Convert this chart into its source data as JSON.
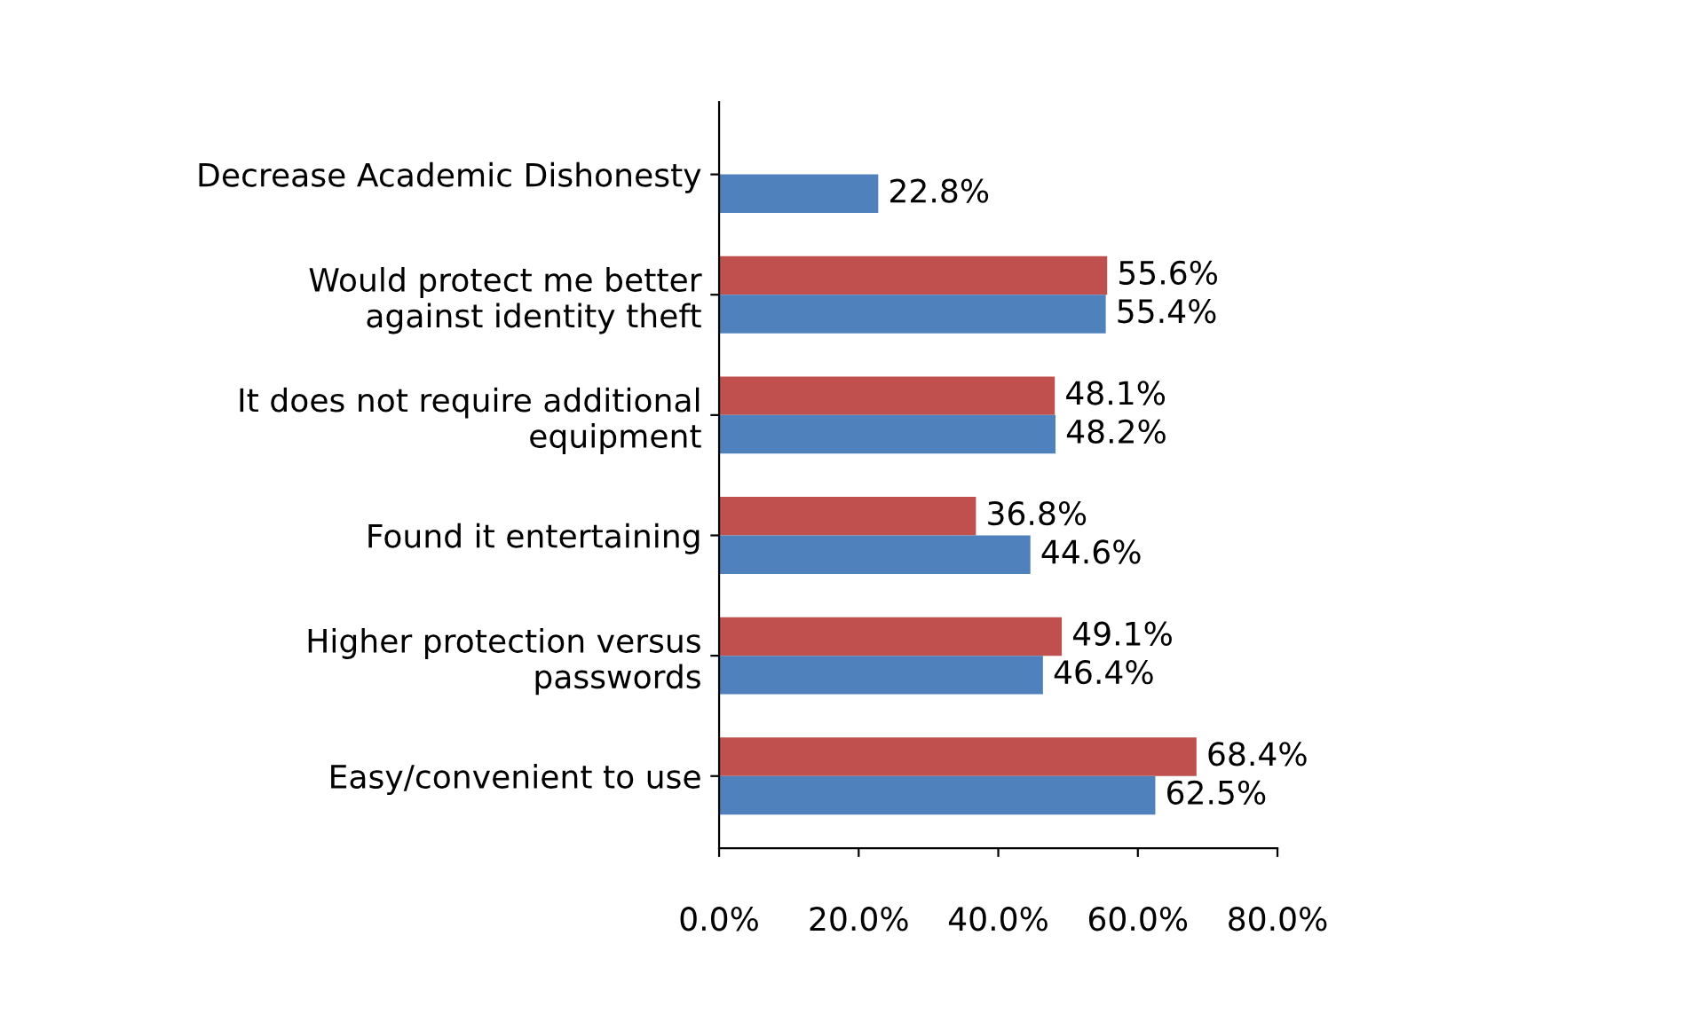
{
  "chart_data": {
    "type": "bar",
    "orientation": "horizontal",
    "categories": [
      "Decrease Academic Dishonesty",
      "Would protect me better\nagainst identity theft",
      "It does not require additional\nequipment",
      "Found it entertaining",
      "Higher protection versus\npasswords",
      "Easy/convenient to use"
    ],
    "series": [
      {
        "color": "#c0504d",
        "values": [
          null,
          55.6,
          48.1,
          36.8,
          49.1,
          68.4
        ],
        "value_labels": [
          null,
          "55.6%",
          "48.1%",
          "36.8%",
          "49.1%",
          "68.4%"
        ]
      },
      {
        "color": "#4f81bd",
        "values": [
          22.8,
          55.4,
          48.2,
          44.6,
          46.4,
          62.5
        ],
        "value_labels": [
          "22.8%",
          "55.4%",
          "48.2%",
          "44.6%",
          "46.4%",
          "62.5%"
        ]
      }
    ],
    "xlim": [
      0,
      80
    ],
    "xticks": [
      {
        "value": 0,
        "label": "0.0%"
      },
      {
        "value": 20,
        "label": "20.0%"
      },
      {
        "value": 40,
        "label": "40.0%"
      },
      {
        "value": 60,
        "label": "60.0%"
      },
      {
        "value": 80,
        "label": "80.0%"
      }
    ],
    "grid": false
  }
}
